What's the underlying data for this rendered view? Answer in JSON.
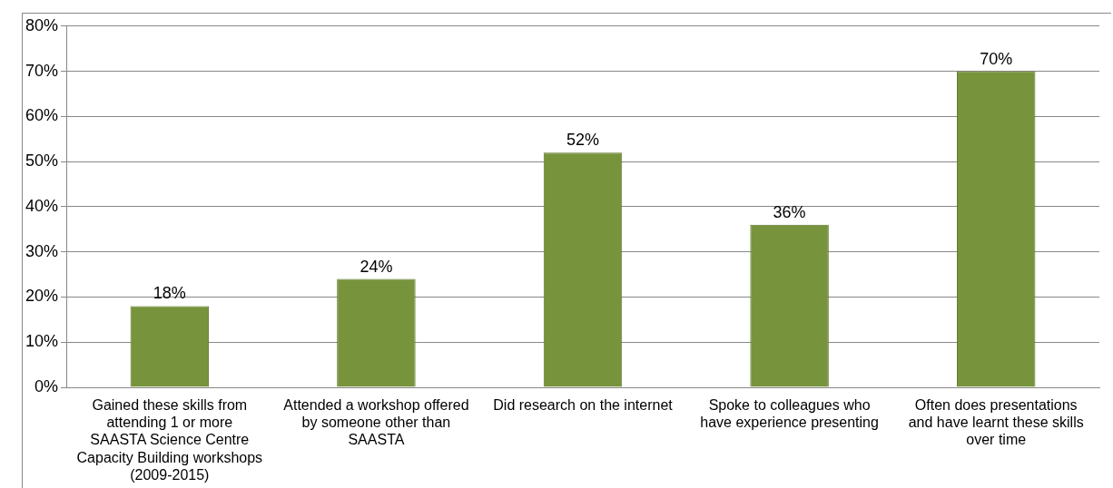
{
  "chart_data": {
    "type": "bar",
    "categories": [
      "Gained these skills from attending 1 or more SAASTA Science Centre Capacity Building workshops (2009-2015)",
      "Attended a workshop offered by someone other than SAASTA",
      "Did research on the internet",
      "Spoke to colleagues who have experience presenting",
      "Often does presentations and have learnt these skills over time"
    ],
    "values": [
      18,
      24,
      52,
      36,
      70
    ],
    "color": "#77933c",
    "data_labels": true,
    "value_labels": [
      "18%",
      "24%",
      "52%",
      "36%",
      "70%"
    ],
    "ylim": [
      0,
      80
    ],
    "yticks": [
      {
        "value": 0,
        "label": "0%"
      },
      {
        "value": 10,
        "label": "10%"
      },
      {
        "value": 20,
        "label": "20%"
      },
      {
        "value": 30,
        "label": "30%"
      },
      {
        "value": 40,
        "label": "40%"
      },
      {
        "value": 50,
        "label": "50%"
      },
      {
        "value": 60,
        "label": "60%"
      },
      {
        "value": 70,
        "label": "70%"
      },
      {
        "value": 80,
        "label": "80%"
      }
    ],
    "grid": "y",
    "legend": false
  }
}
